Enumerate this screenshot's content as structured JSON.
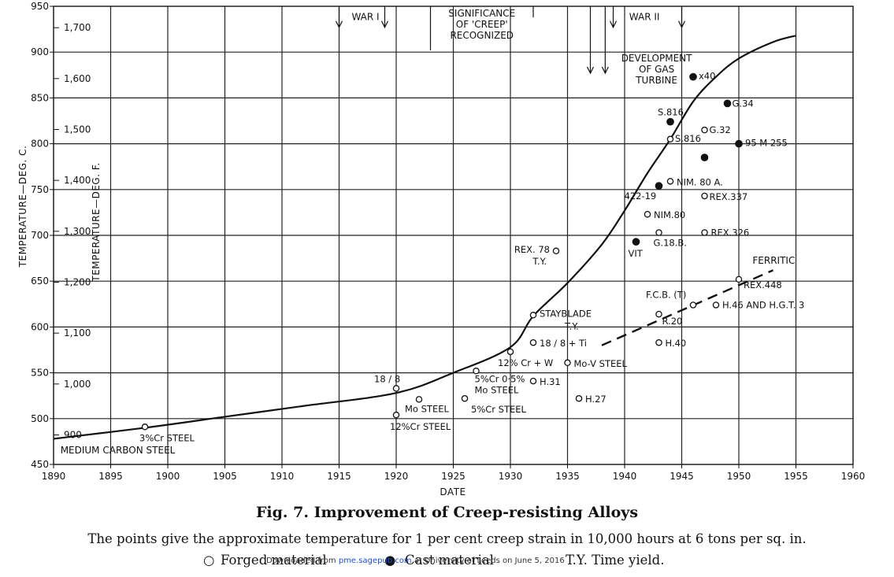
{
  "chart_data": {
    "type": "scatter",
    "title": "Fig. 7. Improvement of Creep-resisting Alloys",
    "subtitle": "The points give the approximate temperature for 1 per cent creep strain in 10,000 hours at 6 tons per sq. in.",
    "xlabel": "DATE",
    "ylabel": "TEMPERATURE—DEG. C.",
    "ylabel_secondary": "TEMPERATURE—DEG. F.",
    "xlim": [
      1890,
      1960
    ],
    "ylim": [
      450,
      950
    ],
    "x_ticks": [
      "1890",
      "1895",
      "1900",
      "1905",
      "1910",
      "1915",
      "1920",
      "1925",
      "1930",
      "1935",
      "1940",
      "1945",
      "1950",
      "1955",
      "1960"
    ],
    "y_ticks": [
      "450",
      "500",
      "550",
      "600",
      "650",
      "700",
      "750",
      "800",
      "850",
      "900",
      "950"
    ],
    "f_ticks": [
      {
        "value": 900,
        "label": "900"
      },
      {
        "value": 1000,
        "label": "1,000"
      },
      {
        "value": 1100,
        "label": "1,100"
      },
      {
        "value": 1200,
        "label": "1,200"
      },
      {
        "value": 1300,
        "label": "1,300"
      },
      {
        "value": 1400,
        "label": "1,400"
      },
      {
        "value": 1500,
        "label": "1,500"
      },
      {
        "value": 1600,
        "label": "1,600"
      },
      {
        "value": 1700,
        "label": "1,700"
      }
    ],
    "y_tick_500_label": "500",
    "grid": true,
    "trend_curve": [
      [
        1890,
        478
      ],
      [
        1898,
        490
      ],
      [
        1905,
        502
      ],
      [
        1912,
        514
      ],
      [
        1920,
        528
      ],
      [
        1925,
        550
      ],
      [
        1930,
        578
      ],
      [
        1932,
        612
      ],
      [
        1935,
        648
      ],
      [
        1938,
        690
      ],
      [
        1940,
        727
      ],
      [
        1942,
        768
      ],
      [
        1944,
        805
      ],
      [
        1946,
        846
      ],
      [
        1948,
        873
      ],
      [
        1950,
        893
      ],
      [
        1953,
        911
      ],
      [
        1955,
        918
      ]
    ],
    "ferritic_line": [
      [
        1938,
        580
      ],
      [
        1953,
        662
      ]
    ],
    "points": [
      {
        "label": "3%Cr STEEL",
        "x": 1898,
        "y": 491,
        "type": "forged"
      },
      {
        "label": "18 / 8",
        "x": 1920,
        "y": 533,
        "type": "forged"
      },
      {
        "label": "12%Cr STEEL",
        "x": 1920,
        "y": 504,
        "type": "forged"
      },
      {
        "label": "Mo STEEL",
        "x": 1922,
        "y": 521,
        "type": "forged"
      },
      {
        "label": "5%Cr STEEL",
        "x": 1926,
        "y": 522,
        "type": "forged"
      },
      {
        "label": "5%Cr 0·5% Mo STEEL",
        "x": 1927,
        "y": 552,
        "type": "forged"
      },
      {
        "label": "12% Cr + W",
        "x": 1930,
        "y": 573,
        "type": "forged"
      },
      {
        "label": "H.31",
        "x": 1932,
        "y": 541,
        "type": "forged"
      },
      {
        "label": "18 / 8 + Ti",
        "x": 1932,
        "y": 583,
        "type": "forged"
      },
      {
        "label": "STAYBLADE T.Y.",
        "x": 1932,
        "y": 613,
        "type": "forged"
      },
      {
        "label": "REX. 78 T.Y.",
        "x": 1934,
        "y": 683,
        "type": "forged"
      },
      {
        "label": "Mo-V STEEL",
        "x": 1935,
        "y": 561,
        "type": "forged"
      },
      {
        "label": "H.27",
        "x": 1936,
        "y": 522,
        "type": "forged"
      },
      {
        "label": "VIT",
        "x": 1941,
        "y": 693,
        "type": "cast"
      },
      {
        "label": "NIM.80",
        "x": 1942,
        "y": 723,
        "type": "forged"
      },
      {
        "label": "G.18.B.",
        "x": 1943,
        "y": 703,
        "type": "forged"
      },
      {
        "label": "422-19",
        "x": 1943,
        "y": 754,
        "type": "cast"
      },
      {
        "label": "H.40",
        "x": 1943,
        "y": 583,
        "type": "forged"
      },
      {
        "label": "R.20",
        "x": 1943,
        "y": 614,
        "type": "forged"
      },
      {
        "label": "NIM. 80 A.",
        "x": 1944,
        "y": 759,
        "type": "forged"
      },
      {
        "label": "S.816",
        "x": 1944,
        "y": 824,
        "type": "cast"
      },
      {
        "label": "S.816",
        "x": 1944,
        "y": 805,
        "type": "forged"
      },
      {
        "label": "F.C.B. (T)",
        "x": 1946,
        "y": 624,
        "type": "forged"
      },
      {
        "label": "x40",
        "x": 1946,
        "y": 873,
        "type": "cast"
      },
      {
        "label": "",
        "x": 1947,
        "y": 785,
        "type": "cast"
      },
      {
        "label": "G.32",
        "x": 1947,
        "y": 815,
        "type": "forged"
      },
      {
        "label": "REX.337",
        "x": 1947,
        "y": 743,
        "type": "forged"
      },
      {
        "label": "REX.326",
        "x": 1947,
        "y": 703,
        "type": "forged"
      },
      {
        "label": "H.46 AND H.G.T. 3",
        "x": 1948,
        "y": 624,
        "type": "forged"
      },
      {
        "label": "G.34",
        "x": 1949,
        "y": 844,
        "type": "cast"
      },
      {
        "label": "95 M 255",
        "x": 1950,
        "y": 800,
        "type": "cast"
      },
      {
        "label": "REX.448",
        "x": 1950,
        "y": 652,
        "type": "forged"
      }
    ],
    "annotations": [
      {
        "text": "MEDIUM CARBON STEEL",
        "x": 1891,
        "y": 462
      },
      {
        "text": "FERRITIC",
        "x": 1951,
        "y": 670
      },
      {
        "text": "WAR I",
        "x": 1917,
        "y": 935
      },
      {
        "text": "SIGNIFICANCE OF 'CREEP' RECOGNIZED",
        "x": 1926,
        "y": 935
      },
      {
        "text": "WAR II",
        "x": 1942,
        "y": 935
      },
      {
        "text": "DEVELOPMENT OF GAS TURBINE",
        "x": 1941,
        "y": 890
      }
    ],
    "annotation_lines": {
      "significance": [
        "SIGNIFICANCE",
        "OF 'CREEP'",
        "RECOGNIZED"
      ],
      "gas_turbine": [
        "DEVELOPMENT",
        "OF GAS",
        "TURBINE"
      ]
    },
    "legend": [
      {
        "symbol": "○",
        "text": "Forged material"
      },
      {
        "symbol": "●",
        "text": "Cast material"
      },
      {
        "symbol": "",
        "text": "T.Y. Time yield."
      }
    ]
  },
  "download_notice": {
    "prefix": "Downloaded from ",
    "link": "pme.sagepub.com",
    "suffix": " at University of Leeds on June 5, 2016"
  }
}
